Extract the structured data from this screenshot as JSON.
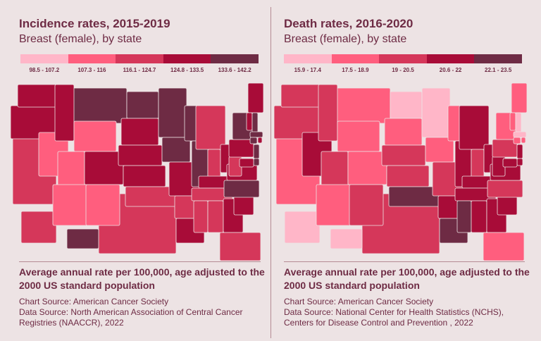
{
  "colors": [
    "#ffb6c8",
    "#ff5e7e",
    "#d5375a",
    "#a80c38",
    "#6e2b44"
  ],
  "panels": [
    {
      "title": "Incidence rates, 2015-2019",
      "subtitle": "Breast (female), by state",
      "legend": [
        "98.5 - 107.2",
        "107.3 - 116",
        "116.1 - 124.7",
        "124.8 - 133.5",
        "133.6 - 142.2"
      ],
      "note": "Average annual rate per 100,000, age adjusted to the 2000 US standard population",
      "sources": [
        "Chart Source: American Cancer Society",
        "Data Source: North American Association of Central Cancer Registries (NAACCR), 2022"
      ],
      "state_class": {
        "WA": 4,
        "OR": 4,
        "CA": 3,
        "NV": 2,
        "ID": 4,
        "MT": 5,
        "WY": 2,
        "UT": 2,
        "AZ": 2,
        "NM": 2,
        "CO": 4,
        "ND": 5,
        "SD": 4,
        "NE": 4,
        "KS": 4,
        "OK": 3,
        "TX": 3,
        "MN": 5,
        "IA": 5,
        "MO": 4,
        "AR": 3,
        "LA": 4,
        "WI": 5,
        "IL": 5,
        "MI": 3,
        "IN": 3,
        "OH": 4,
        "KY": 4,
        "TN": 3,
        "MS": 3,
        "AL": 3,
        "GA": 4,
        "FL": 3,
        "SC": 4,
        "NC": 5,
        "VA": 4,
        "WV": 3,
        "PA": 4,
        "NY": 5,
        "VT": 4,
        "NH": 5,
        "ME": 4,
        "MA": 5,
        "CT": 5,
        "RI": 4,
        "NJ": 5,
        "DE": 5,
        "MD": 4,
        "AK": 3,
        "HI": 5
      }
    },
    {
      "title": "Death rates, 2016-2020",
      "subtitle": "Breast (female), by state",
      "legend": [
        "15.9 - 17.4",
        "17.5 - 18.9",
        "19 - 20.5",
        "20.6 - 22",
        "22.1 - 23.5"
      ],
      "note": "Average annual rate per 100,000, age adjusted to the 2000 US standard population",
      "sources": [
        "Chart Source: American Cancer Society",
        "Data Source: National Center for Health Statistics (NCHS),",
        "Centers for Disease Control and Prevention , 2022"
      ],
      "state_class": {
        "WA": 3,
        "OR": 3,
        "CA": 2,
        "NV": 4,
        "ID": 3,
        "MT": 2,
        "WY": 2,
        "UT": 3,
        "AZ": 2,
        "NM": 3,
        "CO": 2,
        "ND": 1,
        "SD": 2,
        "NE": 3,
        "KS": 3,
        "OK": 5,
        "TX": 3,
        "MN": 1,
        "IA": 2,
        "MO": 3,
        "AR": 4,
        "LA": 5,
        "WI": 2,
        "IL": 4,
        "MI": 4,
        "IN": 3,
        "OH": 4,
        "KY": 4,
        "TN": 4,
        "MS": 5,
        "AL": 4,
        "GA": 4,
        "FL": 2,
        "SC": 4,
        "NC": 3,
        "VA": 4,
        "WV": 4,
        "PA": 3,
        "NY": 2,
        "VT": 2,
        "NH": 1,
        "ME": 2,
        "MA": 1,
        "CT": 2,
        "RI": 2,
        "NJ": 4,
        "DE": 4,
        "MD": 4,
        "AK": 1,
        "HI": 1
      }
    }
  ]
}
